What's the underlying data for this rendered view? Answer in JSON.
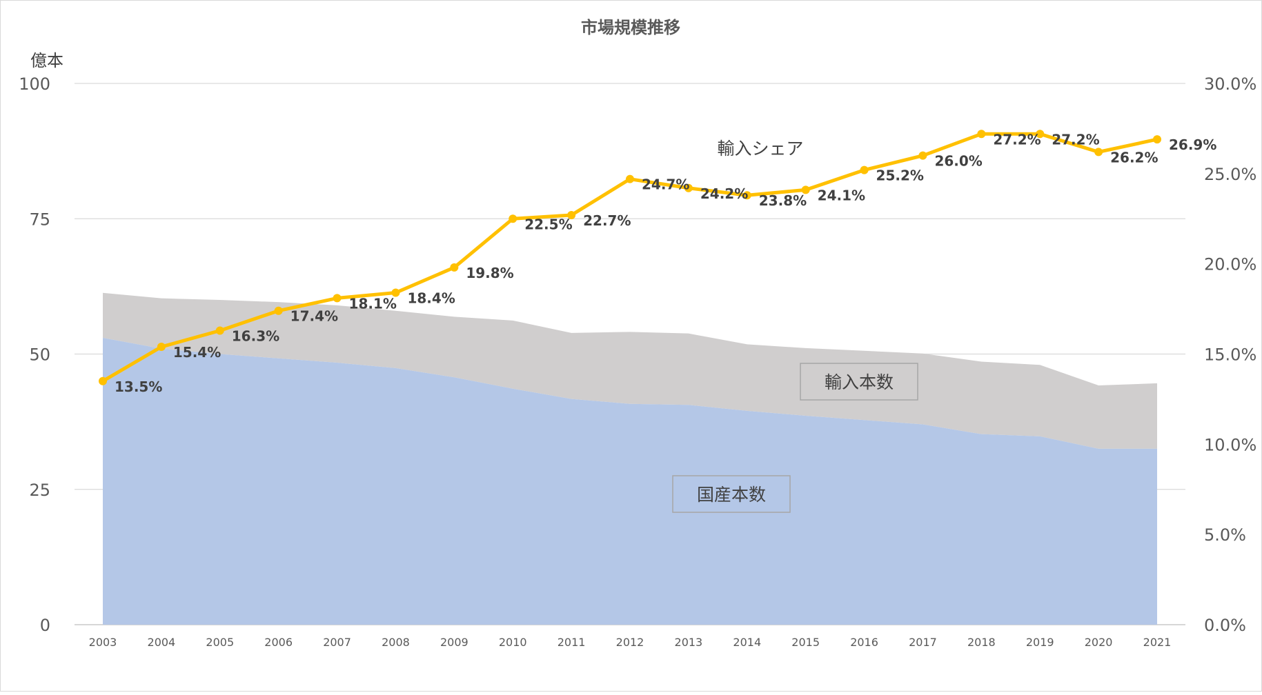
{
  "chart_data": {
    "type": "area",
    "title": "市場規模推移",
    "left_axis": {
      "unit_label": "億本",
      "ylim": [
        0,
        100
      ],
      "ticks": [
        "0",
        "25",
        "50",
        "75",
        "100"
      ]
    },
    "right_axis": {
      "ylim": [
        0,
        30
      ],
      "ticks": [
        "0.0%",
        "5.0%",
        "10.0%",
        "15.0%",
        "20.0%",
        "25.0%",
        "30.0%"
      ]
    },
    "categories": [
      "2003",
      "2004",
      "2005",
      "2006",
      "2007",
      "2008",
      "2009",
      "2010",
      "2011",
      "2012",
      "2013",
      "2014",
      "2015",
      "2016",
      "2017",
      "2018",
      "2019",
      "2020",
      "2021"
    ],
    "series": [
      {
        "name": "国産本数",
        "kind": "area",
        "axis": "left",
        "color": "#b4c7e7",
        "values": [
          53.0,
          51.0,
          50.0,
          49.2,
          48.4,
          47.4,
          45.7,
          43.6,
          41.7,
          40.8,
          40.6,
          39.5,
          38.6,
          37.8,
          37.0,
          35.2,
          34.8,
          32.5,
          32.5
        ]
      },
      {
        "name": "輸入本数",
        "kind": "area-stacked",
        "axis": "left",
        "color": "#d0cece",
        "values": [
          8.3,
          9.3,
          10.0,
          10.4,
          10.6,
          10.6,
          11.2,
          12.6,
          12.2,
          13.3,
          13.2,
          12.3,
          12.5,
          12.8,
          13.1,
          13.4,
          13.2,
          11.7,
          12.1
        ]
      },
      {
        "name": "輸入シェア",
        "kind": "line",
        "axis": "right",
        "color": "#ffc000",
        "values": [
          13.5,
          15.4,
          16.3,
          17.4,
          18.1,
          18.4,
          19.8,
          22.5,
          22.7,
          24.7,
          24.2,
          23.8,
          24.1,
          25.2,
          26.0,
          27.2,
          27.2,
          26.2,
          26.9
        ],
        "data_labels": [
          "13.5%",
          "15.4%",
          "16.3%",
          "17.4%",
          "18.1%",
          "18.4%",
          "19.8%",
          "22.5%",
          "22.7%",
          "24.7%",
          "24.2%",
          "23.8%",
          "24.1%",
          "25.2%",
          "26.0%",
          "27.2%",
          "27.2%",
          "26.2%",
          "26.9%"
        ]
      }
    ],
    "annotations": {
      "domestic_label": "国産本数",
      "import_label": "輸入本数",
      "share_label": "輸入シェア"
    },
    "grid": true,
    "colors": {
      "gridline": "#d9d9d9",
      "axis_text": "#595959",
      "label_text": "#404040"
    }
  }
}
